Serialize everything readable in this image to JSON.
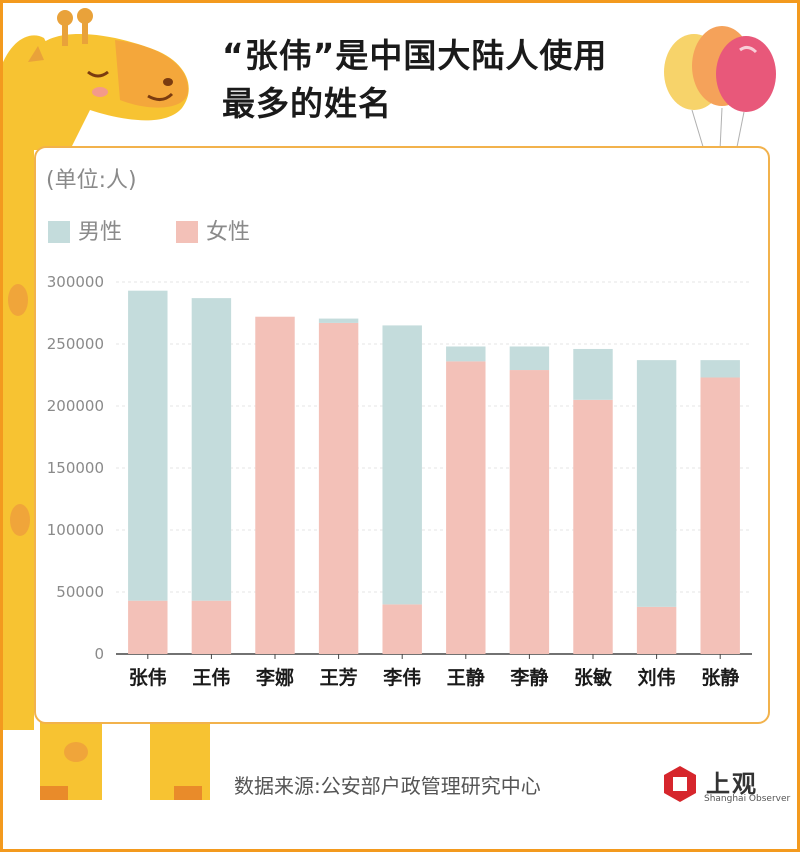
{
  "title_line1": "“张伟”是中国大陆人使用",
  "title_line2": "最多的姓名",
  "unit_label": "(单位:人)",
  "source": "数据来源:公安部户政管理研究中心",
  "logo": {
    "name_cn": "上观",
    "name_en": "Shanghai Observer"
  },
  "colors": {
    "male": "#c4dcdc",
    "female": "#f3c1b8",
    "frame": "#f39a1e",
    "card_border": "#f2b24c",
    "giraffe": "#f7c332",
    "balloon_red": "#e8587a",
    "balloon_orange": "#f5a25a",
    "balloon_yellow": "#f7d36a"
  },
  "chart_data": {
    "type": "bar",
    "stacked": true,
    "categories": [
      "张伟",
      "王伟",
      "李娜",
      "王芳",
      "李伟",
      "王静",
      "李静",
      "张敏",
      "刘伟",
      "张静"
    ],
    "series": [
      {
        "name": "男性",
        "color": "#c4dcdc",
        "values": [
          250000,
          244000,
          0,
          3500,
          225000,
          12000,
          19000,
          41000,
          199000,
          14000
        ]
      },
      {
        "name": "女性",
        "color": "#f3c1b8",
        "values": [
          43000,
          43000,
          272000,
          267000,
          40000,
          236000,
          229000,
          205000,
          38000,
          223000
        ]
      }
    ],
    "y_ticks": [
      "0",
      "50000",
      "100000",
      "150000",
      "200000",
      "250000",
      "300000"
    ],
    "ylim": [
      0,
      300000
    ],
    "grid": true,
    "legend_position": "top-left"
  }
}
